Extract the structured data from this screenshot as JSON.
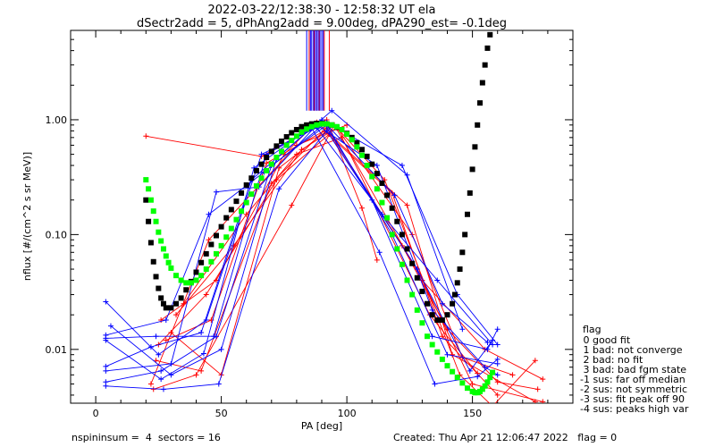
{
  "header": {
    "title_line1": "2022-03-22/12:38:30 - 12:58:32 UT ela",
    "title_line2": "dSectr2add = 5, dPhAng2add = 9.00deg, dPA290_est=  -0.1deg"
  },
  "footer": {
    "left": "nspininsum =  4  sectors = 16",
    "right": "Created: Thu Apr 21 12:06:47 2022   flag = 0"
  },
  "legend": {
    "title": "flag",
    "items": [
      " 0 good fit",
      " 1 bad: not converge",
      " 2 bad: no fit",
      " 3 bad: bad fgm state",
      "-1 sus: far off median",
      "-2 sus: not symmetric",
      "-3 sus: fit peak off 90",
      "-4 sus: peaks high var"
    ]
  },
  "colors": {
    "red_series": "#ff0000",
    "blue_series": "#0000ff",
    "black_fit": "#000000",
    "green_fit": "#00ff00"
  },
  "chart_data": {
    "type": "line",
    "xlabel": "PA [deg]",
    "ylabel": "nflux [#/(cm^2 s sr MeV)]",
    "xlim": [
      -10,
      190
    ],
    "ylim": [
      0.0034,
      6
    ],
    "yscale": "log",
    "xticks": [
      {
        "value": 0,
        "label": "0"
      },
      {
        "value": 50,
        "label": "50"
      },
      {
        "value": 100,
        "label": "100"
      },
      {
        "value": 150,
        "label": "150"
      }
    ],
    "yticks": [
      {
        "value": 1,
        "label": "1.00"
      },
      {
        "value": 0.1,
        "label": "0.10"
      },
      {
        "value": 0.01,
        "label": "0.01"
      }
    ],
    "x_minor_step": 10,
    "vertical_markers": {
      "red": [
        85,
        87,
        88,
        89,
        90,
        91,
        93
      ],
      "blue": [
        84,
        85.5,
        86,
        86.7,
        87.4,
        88,
        88.6,
        89.3,
        90,
        90.6
      ],
      "y_from": 1.2,
      "y_to": 6
    },
    "series": [
      {
        "color": "red",
        "x": [
          20,
          66,
          92,
          106,
          112
        ],
        "y": [
          0.72,
          0.48,
          1.0,
          0.17,
          0.06
        ]
      },
      {
        "color": "red",
        "x": [
          22,
          45,
          80,
          100
        ],
        "y": [
          0.005,
          0.09,
          0.6,
          0.9
        ]
      },
      {
        "color": "red",
        "x": [
          23,
          40,
          78,
          95,
          115,
          145,
          158,
          175
        ],
        "y": [
          0.0045,
          0.006,
          0.18,
          0.9,
          0.3,
          0.006,
          0.0032,
          0.008
        ]
      },
      {
        "color": "red",
        "x": [
          25,
          44,
          72,
          93,
          122,
          140,
          160,
          176
        ],
        "y": [
          0.011,
          0.03,
          0.3,
          0.75,
          0.08,
          0.015,
          0.0052,
          0.0045
        ]
      },
      {
        "color": "red",
        "x": [
          26,
          48,
          75,
          88,
          124,
          142,
          175
        ],
        "y": [
          0.018,
          0.04,
          0.5,
          0.95,
          0.18,
          0.009,
          0.0035
        ]
      },
      {
        "color": "red",
        "x": [
          24,
          42,
          70,
          92,
          128,
          150,
          178
        ],
        "y": [
          0.008,
          0.0065,
          0.28,
          0.85,
          0.05,
          0.005,
          0.0035
        ]
      },
      {
        "color": "red",
        "x": [
          28,
          46,
          68,
          91,
          118,
          138,
          160
        ],
        "y": [
          0.012,
          0.018,
          0.42,
          0.8,
          0.23,
          0.013,
          0.004
        ]
      },
      {
        "color": "red",
        "x": [
          30,
          50,
          73,
          95,
          130,
          155,
          178
        ],
        "y": [
          0.014,
          0.006,
          0.38,
          0.9,
          0.04,
          0.01,
          0.0055
        ]
      },
      {
        "color": "red",
        "x": [
          32,
          55,
          82,
          96,
          126,
          146,
          166
        ],
        "y": [
          0.02,
          0.08,
          0.55,
          0.85,
          0.1,
          0.0085,
          0.006
        ]
      },
      {
        "color": "red",
        "x": [
          35,
          60,
          80,
          98,
          133,
          152
        ],
        "y": [
          0.025,
          0.15,
          0.5,
          0.7,
          0.02,
          0.0062
        ]
      },
      {
        "color": "blue",
        "x": [
          4,
          25,
          44,
          66,
          88,
          110,
          134,
          156,
          160
        ],
        "y": [
          0.026,
          0.009,
          0.018,
          0.5,
          0.85,
          0.2,
          0.013,
          0.01,
          0.015
        ]
      },
      {
        "color": "blue",
        "x": [
          4,
          26,
          43,
          63,
          90,
          114,
          136,
          158
        ],
        "y": [
          0.012,
          0.0055,
          0.0092,
          0.38,
          1.0,
          0.15,
          0.04,
          0.011
        ]
      },
      {
        "color": "blue",
        "x": [
          4,
          30,
          48,
          65,
          88,
          112,
          134,
          155,
          160
        ],
        "y": [
          0.0065,
          0.0075,
          0.235,
          0.26,
          0.9,
          0.4,
          0.022,
          0.007,
          0.006
        ]
      },
      {
        "color": "blue",
        "x": [
          4,
          26,
          48,
          70,
          92,
          118,
          140,
          160
        ],
        "y": [
          0.0052,
          0.0065,
          0.013,
          0.4,
          0.9,
          0.1,
          0.009,
          0.0075
        ]
      },
      {
        "color": "blue",
        "x": [
          4,
          22,
          42,
          62,
          86,
          113,
          135,
          152,
          160
        ],
        "y": [
          0.0071,
          0.0105,
          0.014,
          0.3,
          0.85,
          0.07,
          0.005,
          0.0058,
          0.0082
        ]
      },
      {
        "color": "blue",
        "x": [
          4,
          24,
          47,
          68,
          91,
          119,
          138,
          156
        ],
        "y": [
          0.0125,
          0.013,
          0.013,
          0.5,
          0.95,
          0.22,
          0.025,
          0.0115
        ]
      },
      {
        "color": "blue",
        "x": [
          4,
          28,
          45,
          67,
          92,
          122,
          144,
          160
        ],
        "y": [
          0.0133,
          0.018,
          0.15,
          0.35,
          0.95,
          0.4,
          0.03,
          0.011
        ]
      },
      {
        "color": "blue",
        "x": [
          6,
          30,
          50,
          72,
          94,
          124,
          146
        ],
        "y": [
          0.016,
          0.006,
          0.01,
          0.46,
          1.2,
          0.33,
          0.015
        ]
      },
      {
        "color": "blue",
        "x": [
          4,
          27,
          49,
          73,
          92,
          128,
          149,
          158
        ],
        "y": [
          0.0048,
          0.0045,
          0.005,
          0.25,
          0.8,
          0.05,
          0.0065,
          0.012
        ]
      }
    ],
    "fit_black": {
      "x": [
        20,
        21,
        22,
        23,
        24,
        25,
        26,
        27,
        28,
        30,
        32,
        34,
        36,
        38,
        40,
        42,
        44,
        46,
        48,
        50,
        52,
        54,
        56,
        58,
        60,
        62,
        64,
        66,
        68,
        70,
        72,
        74,
        76,
        78,
        80,
        82,
        84,
        86,
        88,
        90,
        92,
        94,
        96,
        98,
        100,
        102,
        104,
        106,
        108,
        110,
        112,
        114,
        116,
        118,
        120,
        122,
        124,
        126,
        128,
        130,
        132,
        134,
        136,
        138,
        140,
        142,
        143,
        144,
        145,
        146,
        147,
        148,
        149,
        150,
        151,
        152,
        153,
        154,
        155,
        156,
        157,
        158,
        159
      ],
      "y": [
        0.2,
        0.13,
        0.085,
        0.058,
        0.043,
        0.034,
        0.028,
        0.025,
        0.023,
        0.023,
        0.025,
        0.028,
        0.033,
        0.039,
        0.047,
        0.057,
        0.068,
        0.082,
        0.098,
        0.117,
        0.14,
        0.165,
        0.195,
        0.23,
        0.27,
        0.31,
        0.36,
        0.41,
        0.47,
        0.53,
        0.59,
        0.65,
        0.71,
        0.77,
        0.82,
        0.87,
        0.9,
        0.92,
        0.93,
        0.93,
        0.92,
        0.9,
        0.86,
        0.82,
        0.76,
        0.7,
        0.63,
        0.55,
        0.48,
        0.41,
        0.34,
        0.28,
        0.22,
        0.17,
        0.13,
        0.1,
        0.075,
        0.056,
        0.042,
        0.032,
        0.025,
        0.02,
        0.018,
        0.018,
        0.02,
        0.025,
        0.03,
        0.038,
        0.05,
        0.07,
        0.1,
        0.15,
        0.23,
        0.37,
        0.58,
        0.9,
        1.4,
        2.1,
        3.0,
        4.2,
        5.5,
        6.5,
        7.5
      ]
    },
    "fit_green": {
      "x": [
        20,
        21,
        22,
        23,
        24,
        25,
        26,
        27,
        28,
        29,
        30,
        32,
        34,
        36,
        38,
        40,
        42,
        44,
        46,
        48,
        50,
        52,
        54,
        56,
        58,
        60,
        62,
        64,
        66,
        68,
        70,
        72,
        74,
        76,
        78,
        80,
        82,
        84,
        86,
        88,
        90,
        92,
        94,
        96,
        98,
        100,
        102,
        104,
        106,
        108,
        110,
        112,
        114,
        116,
        118,
        120,
        122,
        124,
        126,
        128,
        130,
        132,
        134,
        136,
        138,
        140,
        142,
        144,
        146,
        148,
        150,
        151,
        152,
        153,
        154,
        155,
        156,
        157,
        158
      ],
      "y": [
        0.3,
        0.25,
        0.2,
        0.16,
        0.13,
        0.105,
        0.088,
        0.075,
        0.065,
        0.057,
        0.051,
        0.044,
        0.04,
        0.038,
        0.038,
        0.04,
        0.044,
        0.05,
        0.058,
        0.068,
        0.08,
        0.095,
        0.113,
        0.135,
        0.16,
        0.19,
        0.225,
        0.265,
        0.31,
        0.36,
        0.41,
        0.47,
        0.53,
        0.6,
        0.66,
        0.72,
        0.78,
        0.83,
        0.87,
        0.9,
        0.92,
        0.92,
        0.9,
        0.87,
        0.82,
        0.75,
        0.67,
        0.58,
        0.49,
        0.4,
        0.32,
        0.25,
        0.19,
        0.14,
        0.1,
        0.075,
        0.055,
        0.04,
        0.03,
        0.022,
        0.017,
        0.013,
        0.011,
        0.0095,
        0.0082,
        0.0072,
        0.0064,
        0.0057,
        0.0051,
        0.0046,
        0.0043,
        0.0042,
        0.0042,
        0.0043,
        0.0045,
        0.0048,
        0.0052,
        0.0057,
        0.0063
      ]
    }
  }
}
